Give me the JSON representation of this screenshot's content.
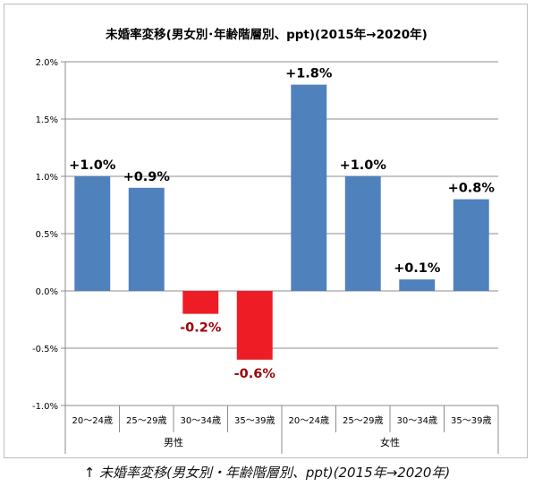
{
  "caption": {
    "arrow": "↑",
    "text": " 未婚率変移(男女別・年齢階層別、ppt)(2015年→2020年)"
  },
  "chart_data": {
    "type": "bar",
    "title": "未婚率変移(男女別･年齢階層別、ppt)(2015年→2020年)",
    "xlabel": "",
    "ylabel": "",
    "ylim": [
      -1.0,
      2.0
    ],
    "yticks": [
      "2.0%",
      "1.5%",
      "1.0%",
      "0.5%",
      "0.0%",
      "-0.5%",
      "-1.0%"
    ],
    "yticks_values": [
      2.0,
      1.5,
      1.0,
      0.5,
      0.0,
      -0.5,
      -1.0
    ],
    "grid": true,
    "legend": "none",
    "categories": [
      "20～24歳",
      "25～29歳",
      "30～34歳",
      "35～39歳",
      "20～24歳",
      "25～29歳",
      "30～34歳",
      "35～39歳"
    ],
    "groups": [
      {
        "label": "男性",
        "span": [
          0,
          3
        ]
      },
      {
        "label": "女性",
        "span": [
          4,
          7
        ]
      }
    ],
    "values": [
      1.0,
      0.9,
      -0.2,
      -0.6,
      1.8,
      1.0,
      0.1,
      0.8
    ],
    "data_labels": [
      "+1.0%",
      "+0.9%",
      "-0.2%",
      "-0.6%",
      "+1.8%",
      "+1.0%",
      "+0.1%",
      "+0.8%"
    ],
    "colors": {
      "positive": "#4f81bd",
      "negative": "#ee1c25",
      "negative_label": "#9c0006",
      "positive_label": "#000000",
      "grid": "#8c8c8c"
    }
  }
}
